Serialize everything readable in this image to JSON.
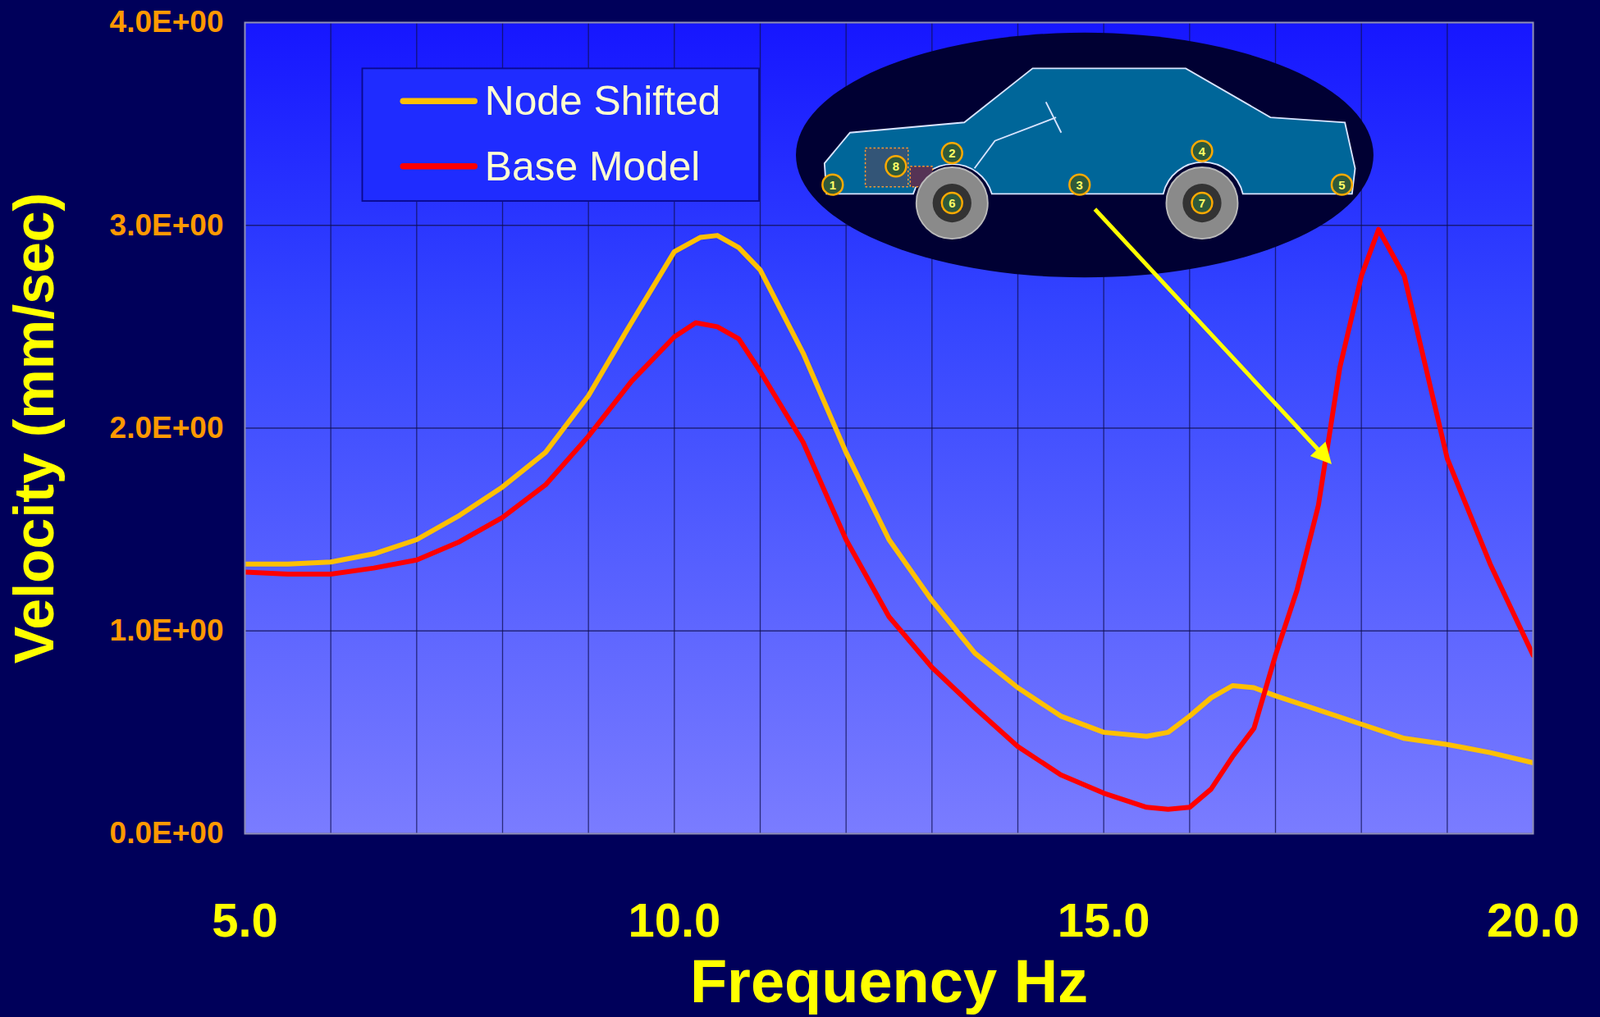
{
  "chart_data": {
    "type": "line",
    "x_label": "Frequency Hz",
    "y_label": "Velocity (mm/sec)",
    "xlim": [
      5,
      20
    ],
    "ylim": [
      0,
      4
    ],
    "xticks": [
      {
        "value": 5,
        "label": "5.0"
      },
      {
        "value": 6,
        "label": null
      },
      {
        "value": 7,
        "label": null
      },
      {
        "value": 8,
        "label": null
      },
      {
        "value": 9,
        "label": null
      },
      {
        "value": 10,
        "label": "10.0"
      },
      {
        "value": 11,
        "label": null
      },
      {
        "value": 12,
        "label": null
      },
      {
        "value": 13,
        "label": null
      },
      {
        "value": 14,
        "label": null
      },
      {
        "value": 15,
        "label": "15.0"
      },
      {
        "value": 16,
        "label": null
      },
      {
        "value": 17,
        "label": null
      },
      {
        "value": 18,
        "label": null
      },
      {
        "value": 19,
        "label": null
      },
      {
        "value": 20,
        "label": "20.0"
      }
    ],
    "yticks": [
      {
        "value": 0,
        "label": "0.0E+00"
      },
      {
        "value": 1,
        "label": "1.0E+00"
      },
      {
        "value": 2,
        "label": "2.0E+00"
      },
      {
        "value": 3,
        "label": "3.0E+00"
      },
      {
        "value": 4,
        "label": "4.0E+00"
      }
    ],
    "grid": true,
    "legend": "top-left",
    "series": [
      {
        "name": "Node Shifted",
        "color": "#ffc000",
        "x": [
          5,
          5.5,
          6,
          6.5,
          7,
          7.5,
          8,
          8.5,
          9,
          9.5,
          10,
          10.3,
          10.5,
          10.75,
          11,
          11.5,
          12,
          12.5,
          13,
          13.5,
          14,
          14.5,
          15,
          15.5,
          15.75,
          16,
          16.25,
          16.5,
          16.75,
          17,
          17.5,
          18,
          18.5,
          19,
          19.5,
          20
        ],
        "values": [
          1.33,
          1.33,
          1.34,
          1.38,
          1.45,
          1.57,
          1.71,
          1.88,
          2.16,
          2.52,
          2.87,
          2.94,
          2.95,
          2.89,
          2.78,
          2.37,
          1.88,
          1.45,
          1.15,
          0.89,
          0.72,
          0.58,
          0.5,
          0.48,
          0.5,
          0.58,
          0.67,
          0.73,
          0.72,
          0.68,
          0.61,
          0.54,
          0.47,
          0.44,
          0.4,
          0.35
        ]
      },
      {
        "name": "Base Model",
        "color": "#ff0000",
        "x": [
          5,
          5.5,
          6,
          6.5,
          7,
          7.5,
          8,
          8.5,
          9,
          9.5,
          10,
          10.25,
          10.5,
          10.75,
          11,
          11.5,
          12,
          12.5,
          13,
          13.5,
          14,
          14.5,
          15,
          15.5,
          15.75,
          16,
          16.25,
          16.5,
          16.75,
          17,
          17.25,
          17.5,
          17.75,
          18,
          18.2,
          18.5,
          18.75,
          19,
          19.5,
          20
        ],
        "values": [
          1.29,
          1.28,
          1.28,
          1.31,
          1.35,
          1.44,
          1.56,
          1.72,
          1.96,
          2.23,
          2.45,
          2.52,
          2.5,
          2.44,
          2.28,
          1.93,
          1.45,
          1.07,
          0.82,
          0.62,
          0.43,
          0.29,
          0.2,
          0.13,
          0.12,
          0.13,
          0.22,
          0.38,
          0.52,
          0.88,
          1.2,
          1.62,
          2.3,
          2.75,
          2.98,
          2.75,
          2.3,
          1.85,
          1.33,
          0.88
        ]
      }
    ],
    "annotation": {
      "node_labels": [
        1,
        2,
        3,
        4,
        5,
        6,
        7,
        8
      ]
    }
  }
}
